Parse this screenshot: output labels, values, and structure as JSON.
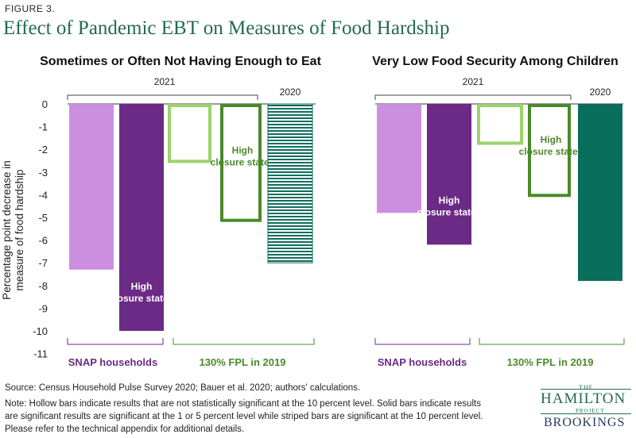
{
  "figure_label": "FIGURE 3.",
  "title": "Effect of Pandemic EBT on Measures of Food Hardship",
  "source": "Source: Census Household Pulse Survey 2020; Bauer et al. 2020; authors' calculations.",
  "note_lines": [
    "Note: Hollow bars indicate results that are not statistically significant at the 10 percent level. Solid bars indicate results",
    "are significant results are significant at the 1 or 5 percent level while striped bars are significant at the 10 percent level.",
    "Please refer to the technical appendix for additional details."
  ],
  "logo": {
    "the": "THE",
    "hamilton": "HAMILTON",
    "project": "PROJECT",
    "brookings": "BROOKINGS"
  },
  "colors": {
    "snap_light": "#cc8fe0",
    "snap_dark": "#6b2a86",
    "fpl_green": "#4a8a2a",
    "fpl_light_outline": "#9bd36b",
    "striped_teal": "#0e6e5e",
    "solid_teal": "#0a6e5c",
    "title_green": "#226b50"
  },
  "chart_data": {
    "type": "bar",
    "ylabel": "Percentage point decrease in measure of food hardship",
    "ylim": [
      -11,
      0
    ],
    "yticks": [
      0,
      -1,
      -2,
      -3,
      -4,
      -5,
      -6,
      -7,
      -8,
      -9,
      -10,
      -11
    ],
    "grid": false,
    "panels": [
      {
        "title": "Sometimes or Often Not Having Enough to Eat",
        "year_labels": [
          "2021",
          "2020"
        ],
        "group_labels": [
          "SNAP households",
          "130% FPL in 2019"
        ],
        "bars": [
          {
            "group": "SNAP households",
            "year": "2021",
            "label": "",
            "value": -7.3,
            "style": "solid",
            "color": "#cc8fe0"
          },
          {
            "group": "SNAP households",
            "year": "2021",
            "label": "High closure states",
            "value": -10.0,
            "style": "solid",
            "color": "#6b2a86"
          },
          {
            "group": "130% FPL in 2019",
            "year": "2021",
            "label": "",
            "value": -2.6,
            "style": "hollow",
            "color": "#9bd36b"
          },
          {
            "group": "130% FPL in 2019",
            "year": "2021",
            "label": "High closure states",
            "value": -5.2,
            "style": "hollow",
            "color": "#4a8a2a"
          },
          {
            "group": "130% FPL in 2019",
            "year": "2020",
            "label": "",
            "value": -7.0,
            "style": "striped",
            "color": "#0e6e5e"
          }
        ]
      },
      {
        "title": "Very Low Food Security Among Children",
        "year_labels": [
          "2021",
          "2020"
        ],
        "group_labels": [
          "SNAP households",
          "130% FPL in 2019"
        ],
        "bars": [
          {
            "group": "SNAP households",
            "year": "2021",
            "label": "",
            "value": -4.8,
            "style": "solid",
            "color": "#cc8fe0"
          },
          {
            "group": "SNAP households",
            "year": "2021",
            "label": "High closure states",
            "value": -6.2,
            "style": "solid",
            "color": "#6b2a86"
          },
          {
            "group": "130% FPL in 2019",
            "year": "2021",
            "label": "",
            "value": -1.8,
            "style": "hollow",
            "color": "#9bd36b"
          },
          {
            "group": "130% FPL in 2019",
            "year": "2021",
            "label": "High closure states",
            "value": -4.1,
            "style": "hollow",
            "color": "#4a8a2a"
          },
          {
            "group": "130% FPL in 2019",
            "year": "2020",
            "label": "",
            "value": -7.8,
            "style": "solid",
            "color": "#0a6e5c"
          }
        ]
      }
    ]
  }
}
